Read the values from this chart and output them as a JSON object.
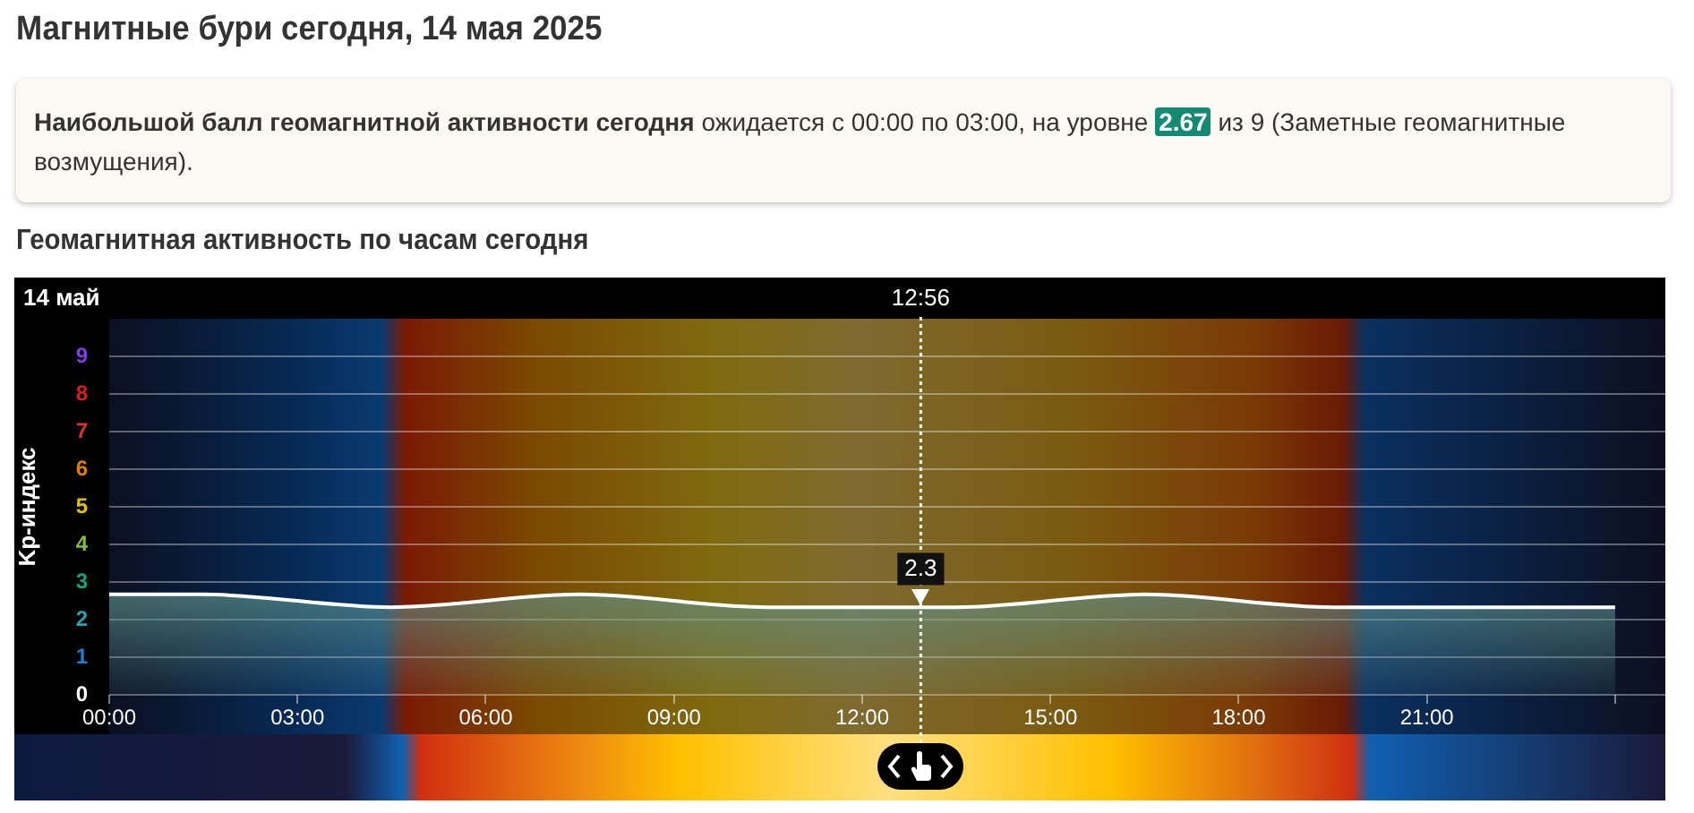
{
  "chart_data": {
    "type": "area",
    "title": "Магнитные бури сегодня, 14 мая 2025",
    "subtitle": "Геомагнитная активность по часам сегодня",
    "ylabel": "Kp-индекс",
    "annotations": [
      "Наибольшой балл геомагнитной активности сегодня",
      "ожидается с 00:00 по 03:00, на уровне",
      "2.67",
      "из 9 (Заметные геомагнитные возмущения).",
      "14 май",
      "12:56",
      {
        "text": "2.3",
        "x": 12.9333,
        "y": 2.3
      }
    ],
    "x": [
      0,
      1.5,
      4.5,
      7.5,
      10.5,
      13.5,
      16.5,
      19.5,
      22.5,
      24
    ],
    "series": [
      {
        "color": "#5f938c",
        "values": [
          2.67,
          2.67,
          2.33,
          2.67,
          2.33,
          2.33,
          2.67,
          2.33,
          2.33,
          2.33
        ]
      }
    ],
    "xlim": [
      0,
      24.8
    ],
    "xticks": [
      {
        "value": 0,
        "label": "00:00"
      },
      {
        "value": 3,
        "label": "03:00"
      },
      {
        "value": 6,
        "label": "06:00"
      },
      {
        "value": 9,
        "label": "09:00"
      },
      {
        "value": 12,
        "label": "12:00"
      },
      {
        "value": 15,
        "label": "15:00"
      },
      {
        "value": 18,
        "label": "18:00"
      },
      {
        "value": 21,
        "label": "21:00"
      },
      {
        "value": 24,
        "label": null
      }
    ],
    "ylim": [
      0,
      10
    ],
    "yticks": [
      0,
      1,
      2,
      3,
      4,
      5,
      6,
      7,
      8,
      9
    ],
    "ref_lines": [
      {
        "axis": "x",
        "value": 12.9333,
        "color": "#ffffff",
        "line_style": "dotted"
      }
    ],
    "grid": "y",
    "legend": false,
    "marker": "none",
    "line_style": "solid"
  }
}
